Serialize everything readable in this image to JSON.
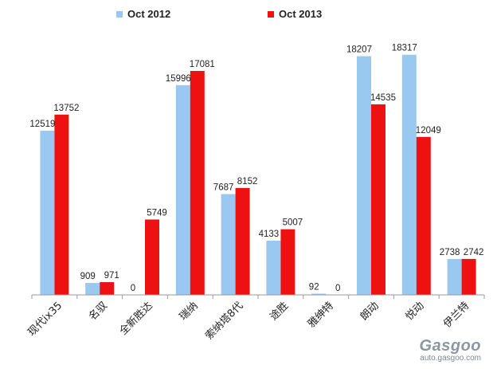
{
  "chart_data": {
    "type": "bar",
    "categories": [
      "现代ix35",
      "名驭",
      "全新胜达",
      "瑞纳",
      "索纳塔8代",
      "途胜",
      "雅绅特",
      "朗动",
      "悦动",
      "伊兰特"
    ],
    "series": [
      {
        "name": "Oct  2012",
        "color": "#99c8f0",
        "values": [
          12519,
          909,
          0,
          15996,
          7687,
          4133,
          92,
          18207,
          18317,
          2738
        ]
      },
      {
        "name": "Oct  2013",
        "color": "#ee1111",
        "values": [
          13752,
          971,
          5749,
          17081,
          8152,
          5007,
          0,
          14535,
          12049,
          2742
        ]
      }
    ],
    "ylim": [
      0,
      20000
    ],
    "grid": false,
    "legend_position": "top"
  },
  "watermark": {
    "logo": "Gasgoo",
    "url": "auto.gasgoo.com"
  }
}
